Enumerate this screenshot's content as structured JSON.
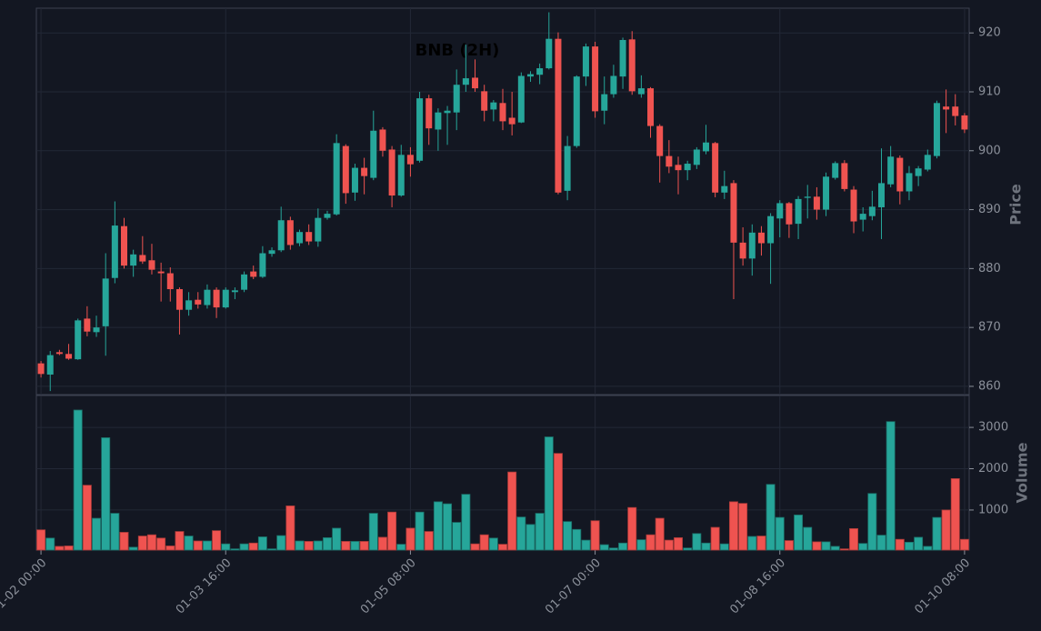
{
  "chart_data": {
    "type": "candlestick",
    "title": "BNB (2H)",
    "ylabel": "Price",
    "volume_label": "Volume",
    "categories": [
      "01-02 00:00",
      null,
      null,
      null,
      null,
      null,
      null,
      null,
      null,
      null,
      null,
      null,
      null,
      null,
      null,
      null,
      null,
      null,
      null,
      null,
      "01-03 16:00",
      null,
      null,
      null,
      null,
      null,
      null,
      null,
      null,
      null,
      null,
      null,
      null,
      null,
      null,
      null,
      null,
      null,
      null,
      null,
      "01-05 08:00",
      null,
      null,
      null,
      null,
      null,
      null,
      null,
      null,
      null,
      null,
      null,
      null,
      null,
      null,
      null,
      null,
      null,
      null,
      null,
      "01-07 00:00",
      null,
      null,
      null,
      null,
      null,
      null,
      null,
      null,
      null,
      null,
      null,
      null,
      null,
      null,
      null,
      null,
      null,
      null,
      null,
      "01-08 16:00",
      null,
      null,
      null,
      null,
      null,
      null,
      null,
      null,
      null,
      null,
      null,
      null,
      null,
      null,
      null,
      null,
      null,
      null,
      null,
      "01-10 08:00"
    ],
    "open": [
      863.9,
      862,
      865.8,
      865.5,
      864.6,
      871.5,
      869.2,
      870.2,
      878.4,
      887.2,
      880.5,
      882.3,
      881.4,
      879.5,
      879.2,
      876.5,
      873,
      874.7,
      873.8,
      876.4,
      873.4,
      876,
      876.4,
      879.5,
      878.6,
      882.5,
      883.1,
      888.2,
      884.3,
      886.2,
      884.6,
      888.6,
      889.2,
      900.8,
      892.9,
      897.1,
      895.4,
      903.6,
      900.2,
      892.4,
      899.3,
      898.3,
      908.9,
      903.6,
      906.4,
      906.5,
      911.2,
      912.4,
      910.1,
      907,
      908.1,
      905.6,
      904.8,
      912.6,
      912.9,
      914,
      919,
      893.2,
      900.8,
      912.6,
      917.7,
      906.8,
      909.6,
      912.6,
      918.9,
      909.6,
      910.6,
      904.2,
      899.1,
      897.6,
      896.7,
      897.6,
      899.9,
      901.3,
      892.9,
      894.5,
      884.4,
      881.7,
      886.1,
      884.3,
      888.5,
      891.1,
      887.6,
      892,
      892.2,
      890,
      895.4,
      897.9,
      893.4,
      888.3,
      888.9,
      890.4,
      894.3,
      898.8,
      893.1,
      895.7,
      896.8,
      899.1,
      907.5,
      907.5,
      906
    ],
    "high": [
      864.3,
      866,
      866.2,
      867.2,
      871.5,
      873.6,
      872,
      882.6,
      891.4,
      888.6,
      883.2,
      885.5,
      884.2,
      881,
      880.2,
      876.8,
      876,
      876,
      877.3,
      876.8,
      876.8,
      876.8,
      879.5,
      880.5,
      883.8,
      883.6,
      890.5,
      888.8,
      886.6,
      887.5,
      890.2,
      889.8,
      902.8,
      901.1,
      897.8,
      898.8,
      906.8,
      904,
      900.8,
      901,
      900.6,
      910,
      909.5,
      907.2,
      907.6,
      913.8,
      918,
      915.5,
      911.2,
      908.6,
      910.5,
      910,
      913.3,
      913.5,
      914.8,
      923.5,
      920.1,
      902.5,
      912.8,
      918.2,
      918.5,
      912.6,
      914.6,
      919.2,
      920.3,
      912.8,
      910.8,
      904.5,
      901.8,
      899,
      898.3,
      900.6,
      904.4,
      901.5,
      896.6,
      895,
      887,
      887.5,
      887.2,
      889.4,
      891.6,
      891.3,
      892.3,
      894.2,
      893.8,
      896.3,
      898.2,
      898.4,
      894,
      890.4,
      893.2,
      900.4,
      900.8,
      899.2,
      897.4,
      897.4,
      900.2,
      908.5,
      910.4,
      909.6,
      906.4
    ],
    "low": [
      861.5,
      859.2,
      865.3,
      864.5,
      864.5,
      868.5,
      868.4,
      865.2,
      877.5,
      880,
      878.6,
      880.8,
      879,
      874.4,
      874.4,
      868.8,
      872,
      873.2,
      873.2,
      871.6,
      873.2,
      874.8,
      876,
      878.2,
      878.4,
      882,
      882.8,
      883.2,
      883.8,
      884,
      883.7,
      888.3,
      889,
      891,
      891.5,
      892.6,
      895,
      899,
      890.4,
      892.2,
      895.6,
      898,
      901,
      900,
      901,
      903.5,
      910,
      910,
      905,
      905,
      903.5,
      902.6,
      904.7,
      911.7,
      911.3,
      913.8,
      892.6,
      891.6,
      900.5,
      911,
      905.6,
      904.5,
      909,
      910.5,
      909.5,
      909,
      902.2,
      894.6,
      896.2,
      892.6,
      895,
      896.9,
      899.4,
      892.1,
      891.8,
      874.8,
      880.5,
      878.8,
      882.2,
      877.4,
      885.3,
      885.2,
      885,
      888.5,
      888.3,
      888.9,
      895.1,
      893.1,
      886,
      886.3,
      888.2,
      885,
      893.8,
      890.9,
      891.6,
      894,
      896.5,
      898.7,
      903,
      904.3,
      903
    ],
    "close": [
      862.1,
      865.3,
      865.5,
      864.7,
      871.2,
      869.3,
      870,
      878.3,
      887.3,
      880.5,
      882.4,
      881.2,
      879.8,
      879.2,
      876.5,
      873,
      874.6,
      873.9,
      876.4,
      873.4,
      876.4,
      876.3,
      879,
      878.6,
      882.6,
      883.1,
      888.2,
      884,
      886.2,
      884.6,
      888.6,
      889.3,
      901.3,
      892.8,
      897.1,
      895.7,
      903.4,
      900,
      892.4,
      899.3,
      897.7,
      908.9,
      903.8,
      906.5,
      906.8,
      911.2,
      912.3,
      910.6,
      906.8,
      908.2,
      905,
      904.5,
      912.7,
      913,
      914,
      919,
      892.9,
      900.8,
      912.6,
      917.7,
      906.7,
      909.6,
      912.7,
      918.8,
      910.1,
      910.6,
      904.2,
      899.1,
      897.3,
      896.7,
      897.8,
      900.2,
      901.4,
      892.9,
      894,
      884.4,
      881.7,
      886.1,
      884.3,
      888.9,
      891.1,
      887.5,
      891.8,
      892.2,
      890,
      895.6,
      897.9,
      893.5,
      888,
      889.3,
      890.5,
      894.5,
      899,
      893.1,
      896.2,
      897,
      899.3,
      908.1,
      907,
      905.9,
      903.6
    ],
    "volume": [
      520,
      320,
      120,
      130,
      3420,
      1600,
      800,
      2750,
      920,
      460,
      100,
      370,
      400,
      320,
      130,
      480,
      370,
      250,
      250,
      500,
      180,
      60,
      180,
      200,
      350,
      60,
      380,
      1100,
      250,
      240,
      250,
      330,
      560,
      240,
      240,
      240,
      920,
      340,
      950,
      170,
      560,
      950,
      480,
      1200,
      1150,
      700,
      1380,
      180,
      400,
      320,
      170,
      1920,
      830,
      650,
      920,
      2770,
      2370,
      720,
      530,
      270,
      740,
      160,
      80,
      200,
      1060,
      280,
      400,
      800,
      270,
      330,
      80,
      430,
      200,
      580,
      180,
      1200,
      1160,
      360,
      370,
      1620,
      820,
      260,
      880,
      580,
      230,
      230,
      120,
      60,
      550,
      190,
      1400,
      390,
      3140,
      290,
      220,
      340,
      120,
      820,
      1000,
      1760,
      290
    ],
    "ylim": [
      858.6,
      924.2
    ],
    "yticks": [
      860,
      870,
      880,
      890,
      900,
      910,
      920
    ],
    "volume_ylim": [
      30,
      3750
    ],
    "volume_yticks": [
      1000,
      2000,
      3000
    ],
    "up_color": "#26a69a",
    "down_color": "#ef5350",
    "grid": true
  }
}
